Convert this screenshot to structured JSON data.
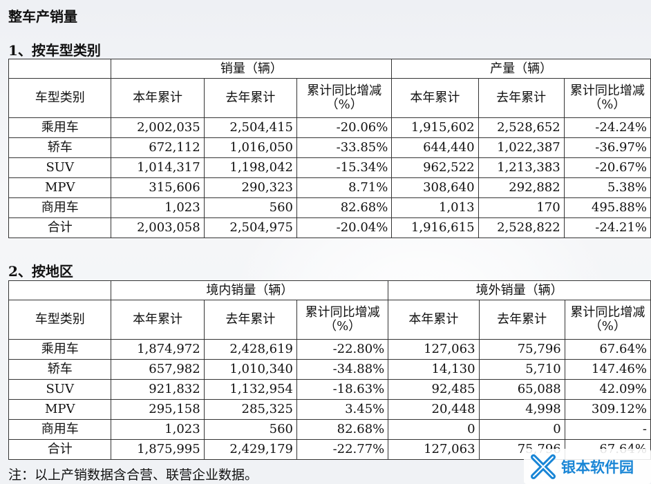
{
  "title": "整车产销量",
  "section1": {
    "heading": "1、按车型类别",
    "group_headers": [
      "销量（辆）",
      "产量（辆）"
    ],
    "columns": [
      "车型类别",
      "本年累计",
      "去年累计",
      "累计同比增减（%）",
      "本年累计",
      "去年累计",
      "累计同比增减（%）"
    ],
    "rows": [
      [
        "乘用车",
        "2,002,035",
        "2,504,415",
        "-20.06%",
        "1,915,602",
        "2,528,652",
        "-24.24%"
      ],
      [
        "轿车",
        "672,112",
        "1,016,050",
        "-33.85%",
        "644,440",
        "1,022,387",
        "-36.97%"
      ],
      [
        "SUV",
        "1,014,317",
        "1,198,042",
        "-15.34%",
        "962,522",
        "1,213,383",
        "-20.67%"
      ],
      [
        "MPV",
        "315,606",
        "290,323",
        "8.71%",
        "308,640",
        "292,882",
        "5.38%"
      ],
      [
        "商用车",
        "1,023",
        "560",
        "82.68%",
        "1,013",
        "170",
        "495.88%"
      ],
      [
        "合计",
        "2,003,058",
        "2,504,975",
        "-20.04%",
        "1,916,615",
        "2,528,822",
        "-24.21%"
      ]
    ]
  },
  "section2": {
    "heading": "2、按地区",
    "group_headers": [
      "境内销量（辆）",
      "境外销量（辆）"
    ],
    "columns": [
      "车型类别",
      "本年累计",
      "去年累计",
      "累计同比增减（%）",
      "本年累计",
      "去年累计",
      "累计同比增减（%）"
    ],
    "rows": [
      [
        "乘用车",
        "1,874,972",
        "2,428,619",
        "-22.80%",
        "127,063",
        "75,796",
        "67.64%"
      ],
      [
        "轿车",
        "657,982",
        "1,010,340",
        "-34.88%",
        "14,130",
        "5,710",
        "147.46%"
      ],
      [
        "SUV",
        "921,832",
        "1,132,954",
        "-18.63%",
        "92,485",
        "65,088",
        "42.09%"
      ],
      [
        "MPV",
        "295,158",
        "285,325",
        "3.45%",
        "20,448",
        "4,998",
        "309.12%"
      ],
      [
        "商用车",
        "1,023",
        "560",
        "82.68%",
        "0",
        "0",
        "-"
      ],
      [
        "合计",
        "1,875,995",
        "2,429,179",
        "-22.77%",
        "127,063",
        "75,796",
        "67.64%"
      ]
    ]
  },
  "note": "注：以上产销数据含合营、联营企业数据。",
  "watermark": {
    "text": "银本软件园",
    "icon": "x-logo-icon",
    "color": "#1a86d6"
  }
}
